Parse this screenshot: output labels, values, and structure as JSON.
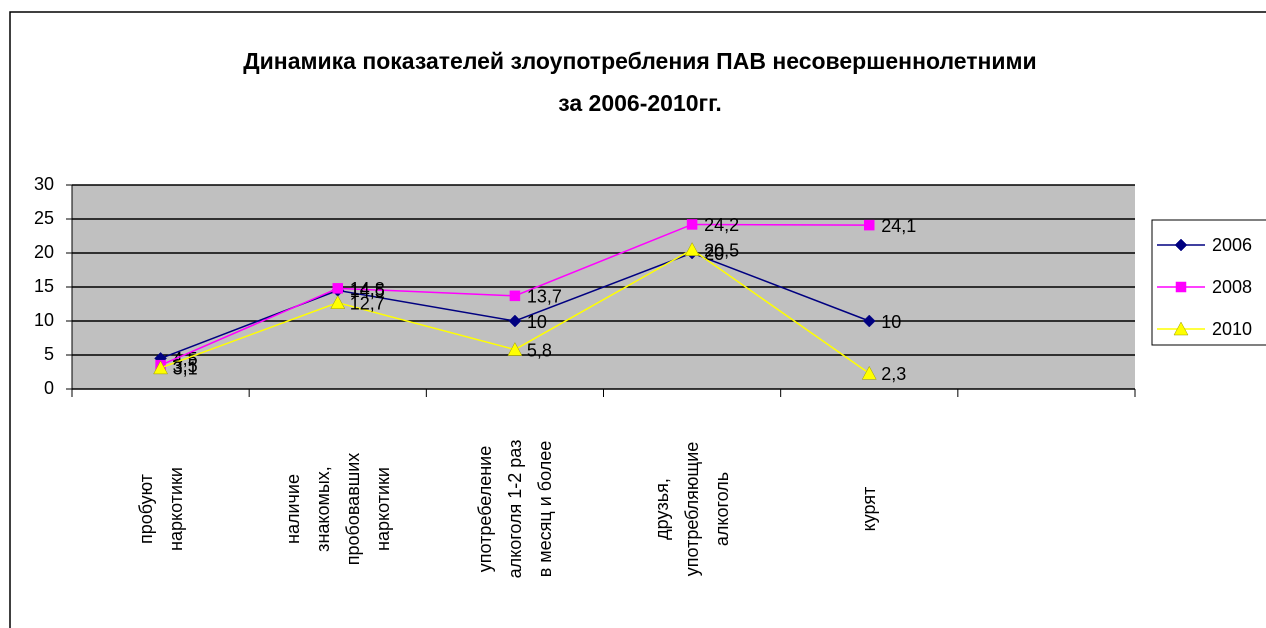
{
  "chart_data": {
    "type": "line",
    "title": "Динамика показателей злоупотребления ПАВ несовершеннолетними\nза 2006-2010гг.",
    "categories": [
      "пробуют\nнаркотики",
      "наличие\nзнакомых,\nпробовавших\nнаркотики",
      "употребеление\nалкоголя 1-2 раз\nв месяц и более",
      "друзья,\nупотребляющие\nалкоголь",
      "курят",
      null
    ],
    "series": [
      {
        "name": "2006",
        "color": "#000080",
        "marker": "diamond",
        "values": [
          4.5,
          14.5,
          10,
          20,
          10,
          null
        ],
        "value_labels": [
          "4,5",
          "14,5",
          "10",
          "20",
          "10",
          null
        ]
      },
      {
        "name": "2008",
        "color": "#ff00ff",
        "marker": "square",
        "values": [
          3.5,
          14.8,
          13.7,
          24.2,
          24.1,
          null
        ],
        "value_labels": [
          "3,5",
          "14,8",
          "13,7",
          "24,2",
          "24,1",
          null
        ]
      },
      {
        "name": "2010",
        "color": "#ffff00",
        "marker": "triangle",
        "values": [
          3.1,
          12.7,
          5.8,
          20.5,
          2.3,
          null
        ],
        "value_labels": [
          "3,1",
          "12,7",
          "5,8",
          "20,5",
          "2,3",
          null
        ]
      }
    ],
    "ylim": [
      0,
      30
    ],
    "yticks": [
      0,
      5,
      10,
      15,
      20,
      25,
      30
    ],
    "grid": true,
    "legend": "right"
  }
}
